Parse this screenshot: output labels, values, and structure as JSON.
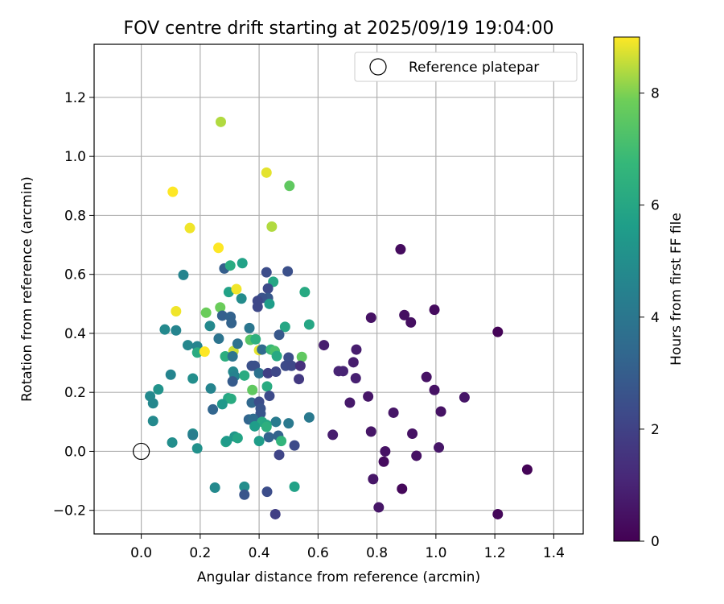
{
  "chart_data": {
    "type": "scatter",
    "title": "FOV centre drift starting at 2025/09/19 19:04:00",
    "xlabel": "Angular distance from reference (arcmin)",
    "ylabel": "Rotation from reference (arcmin)",
    "xlim": [
      -0.16,
      1.5
    ],
    "ylim": [
      -0.28,
      1.38
    ],
    "x_ticks": [
      0.0,
      0.2,
      0.4,
      0.6,
      0.8,
      1.0,
      1.2,
      1.4
    ],
    "x_tick_labels": [
      "0.0",
      "0.2",
      "0.4",
      "0.6",
      "0.8",
      "1.0",
      "1.2",
      "1.4"
    ],
    "y_ticks": [
      -0.2,
      0.0,
      0.2,
      0.4,
      0.6,
      0.8,
      1.0,
      1.2
    ],
    "y_tick_labels": [
      "−0.2",
      "0.0",
      "0.2",
      "0.4",
      "0.6",
      "0.8",
      "1.0",
      "1.2"
    ],
    "grid": true,
    "legend": {
      "position": "top-right",
      "label": "Reference platepar"
    },
    "reference_point": {
      "x": 0.0,
      "y": 0.0
    },
    "colorbar": {
      "label": "Hours from first FF file",
      "min": 0,
      "max": 9,
      "ticks": [
        0,
        2,
        4,
        6,
        8
      ],
      "tick_labels": [
        "0",
        "2",
        "4",
        "6",
        "8"
      ],
      "colormap": "viridis"
    },
    "points": [
      {
        "x": 0.88,
        "y": 0.685,
        "h": 0.3
      },
      {
        "x": 0.995,
        "y": 0.48,
        "h": 0.3
      },
      {
        "x": 0.893,
        "y": 0.462,
        "h": 0.4
      },
      {
        "x": 0.915,
        "y": 0.437,
        "h": 0.4
      },
      {
        "x": 1.21,
        "y": 0.405,
        "h": 0.1
      },
      {
        "x": 0.78,
        "y": 0.453,
        "h": 0.5
      },
      {
        "x": 0.62,
        "y": 0.36,
        "h": 0.8
      },
      {
        "x": 0.73,
        "y": 0.345,
        "h": 0.8
      },
      {
        "x": 0.72,
        "y": 0.302,
        "h": 0.8
      },
      {
        "x": 0.67,
        "y": 0.272,
        "h": 1.0
      },
      {
        "x": 0.685,
        "y": 0.272,
        "h": 1.0
      },
      {
        "x": 0.728,
        "y": 0.248,
        "h": 0.9
      },
      {
        "x": 0.968,
        "y": 0.252,
        "h": 0.5
      },
      {
        "x": 0.995,
        "y": 0.208,
        "h": 0.5
      },
      {
        "x": 1.097,
        "y": 0.183,
        "h": 0.6
      },
      {
        "x": 0.77,
        "y": 0.186,
        "h": 0.6
      },
      {
        "x": 0.708,
        "y": 0.165,
        "h": 0.7
      },
      {
        "x": 0.856,
        "y": 0.131,
        "h": 0.6
      },
      {
        "x": 1.017,
        "y": 0.135,
        "h": 0.5
      },
      {
        "x": 0.92,
        "y": 0.06,
        "h": 0.5
      },
      {
        "x": 0.65,
        "y": 0.056,
        "h": 0.8
      },
      {
        "x": 0.78,
        "y": 0.067,
        "h": 0.6
      },
      {
        "x": 0.828,
        "y": 0.0,
        "h": 0.5
      },
      {
        "x": 1.01,
        "y": 0.013,
        "h": 0.6
      },
      {
        "x": 0.823,
        "y": -0.035,
        "h": 0.3
      },
      {
        "x": 0.934,
        "y": -0.015,
        "h": 0.5
      },
      {
        "x": 0.787,
        "y": -0.094,
        "h": 0.6
      },
      {
        "x": 0.885,
        "y": -0.127,
        "h": 0.2
      },
      {
        "x": 0.806,
        "y": -0.19,
        "h": 0.6
      },
      {
        "x": 1.21,
        "y": -0.213,
        "h": 0.2
      },
      {
        "x": 1.31,
        "y": -0.062,
        "h": 0.1
      },
      {
        "x": 0.27,
        "y": 1.117,
        "h": 8.4
      },
      {
        "x": 0.425,
        "y": 0.945,
        "h": 8.8
      },
      {
        "x": 0.503,
        "y": 0.9,
        "h": 7.6
      },
      {
        "x": 0.107,
        "y": 0.88,
        "h": 9.0
      },
      {
        "x": 0.165,
        "y": 0.757,
        "h": 8.9
      },
      {
        "x": 0.443,
        "y": 0.762,
        "h": 8.4
      },
      {
        "x": 0.262,
        "y": 0.69,
        "h": 9.0
      },
      {
        "x": 0.282,
        "y": 0.62,
        "h": 3.0
      },
      {
        "x": 0.302,
        "y": 0.63,
        "h": 6.2
      },
      {
        "x": 0.343,
        "y": 0.638,
        "h": 5.8
      },
      {
        "x": 0.425,
        "y": 0.607,
        "h": 2.4
      },
      {
        "x": 0.497,
        "y": 0.61,
        "h": 2.5
      },
      {
        "x": 0.143,
        "y": 0.598,
        "h": 4.6
      },
      {
        "x": 0.448,
        "y": 0.575,
        "h": 6.0
      },
      {
        "x": 0.43,
        "y": 0.552,
        "h": 2.3
      },
      {
        "x": 0.297,
        "y": 0.54,
        "h": 5.8
      },
      {
        "x": 0.323,
        "y": 0.55,
        "h": 8.9
      },
      {
        "x": 0.555,
        "y": 0.54,
        "h": 6.1
      },
      {
        "x": 0.43,
        "y": 0.52,
        "h": 2.8
      },
      {
        "x": 0.41,
        "y": 0.52,
        "h": 2.6
      },
      {
        "x": 0.395,
        "y": 0.51,
        "h": 2.2
      },
      {
        "x": 0.34,
        "y": 0.518,
        "h": 4.9
      },
      {
        "x": 0.395,
        "y": 0.49,
        "h": 2.2
      },
      {
        "x": 0.435,
        "y": 0.5,
        "h": 5.6
      },
      {
        "x": 0.118,
        "y": 0.475,
        "h": 8.9
      },
      {
        "x": 0.22,
        "y": 0.47,
        "h": 7.8
      },
      {
        "x": 0.268,
        "y": 0.488,
        "h": 7.8
      },
      {
        "x": 0.275,
        "y": 0.46,
        "h": 3.1
      },
      {
        "x": 0.303,
        "y": 0.456,
        "h": 3.2
      },
      {
        "x": 0.306,
        "y": 0.435,
        "h": 3.2
      },
      {
        "x": 0.233,
        "y": 0.425,
        "h": 4.8
      },
      {
        "x": 0.08,
        "y": 0.413,
        "h": 4.8
      },
      {
        "x": 0.118,
        "y": 0.41,
        "h": 4.6
      },
      {
        "x": 0.367,
        "y": 0.418,
        "h": 4.0
      },
      {
        "x": 0.488,
        "y": 0.422,
        "h": 6.0
      },
      {
        "x": 0.57,
        "y": 0.43,
        "h": 6.0
      },
      {
        "x": 0.263,
        "y": 0.382,
        "h": 3.9
      },
      {
        "x": 0.37,
        "y": 0.378,
        "h": 7.4
      },
      {
        "x": 0.388,
        "y": 0.38,
        "h": 6.4
      },
      {
        "x": 0.468,
        "y": 0.395,
        "h": 2.8
      },
      {
        "x": 0.158,
        "y": 0.36,
        "h": 4.7
      },
      {
        "x": 0.19,
        "y": 0.356,
        "h": 4.6
      },
      {
        "x": 0.19,
        "y": 0.335,
        "h": 6.2
      },
      {
        "x": 0.215,
        "y": 0.338,
        "h": 9.0
      },
      {
        "x": 0.313,
        "y": 0.34,
        "h": 8.6
      },
      {
        "x": 0.327,
        "y": 0.365,
        "h": 3.8
      },
      {
        "x": 0.4,
        "y": 0.343,
        "h": 8.8
      },
      {
        "x": 0.41,
        "y": 0.345,
        "h": 3.5
      },
      {
        "x": 0.44,
        "y": 0.345,
        "h": 6.8
      },
      {
        "x": 0.453,
        "y": 0.34,
        "h": 7.2
      },
      {
        "x": 0.46,
        "y": 0.323,
        "h": 6.1
      },
      {
        "x": 0.545,
        "y": 0.32,
        "h": 7.6
      },
      {
        "x": 0.5,
        "y": 0.318,
        "h": 2.4
      },
      {
        "x": 0.285,
        "y": 0.322,
        "h": 6.3
      },
      {
        "x": 0.31,
        "y": 0.322,
        "h": 3.9
      },
      {
        "x": 0.375,
        "y": 0.29,
        "h": 2.5
      },
      {
        "x": 0.385,
        "y": 0.29,
        "h": 2.5
      },
      {
        "x": 0.49,
        "y": 0.29,
        "h": 2.3
      },
      {
        "x": 0.51,
        "y": 0.29,
        "h": 2.2
      },
      {
        "x": 0.54,
        "y": 0.29,
        "h": 1.4
      },
      {
        "x": 0.1,
        "y": 0.26,
        "h": 4.6
      },
      {
        "x": 0.312,
        "y": 0.27,
        "h": 4.7
      },
      {
        "x": 0.317,
        "y": 0.255,
        "h": 4.5
      },
      {
        "x": 0.35,
        "y": 0.257,
        "h": 6.2
      },
      {
        "x": 0.4,
        "y": 0.265,
        "h": 3.8
      },
      {
        "x": 0.43,
        "y": 0.265,
        "h": 1.9
      },
      {
        "x": 0.457,
        "y": 0.27,
        "h": 2.2
      },
      {
        "x": 0.535,
        "y": 0.245,
        "h": 1.7
      },
      {
        "x": 0.175,
        "y": 0.247,
        "h": 5.0
      },
      {
        "x": 0.31,
        "y": 0.237,
        "h": 2.9
      },
      {
        "x": 0.058,
        "y": 0.21,
        "h": 5.2
      },
      {
        "x": 0.236,
        "y": 0.213,
        "h": 4.6
      },
      {
        "x": 0.377,
        "y": 0.208,
        "h": 7.6
      },
      {
        "x": 0.427,
        "y": 0.22,
        "h": 6.2
      },
      {
        "x": 0.03,
        "y": 0.187,
        "h": 4.8
      },
      {
        "x": 0.435,
        "y": 0.188,
        "h": 2.3
      },
      {
        "x": 0.295,
        "y": 0.18,
        "h": 6.0
      },
      {
        "x": 0.305,
        "y": 0.178,
        "h": 6.2
      },
      {
        "x": 0.375,
        "y": 0.165,
        "h": 3.4
      },
      {
        "x": 0.4,
        "y": 0.168,
        "h": 2.4
      },
      {
        "x": 0.04,
        "y": 0.163,
        "h": 4.7
      },
      {
        "x": 0.275,
        "y": 0.16,
        "h": 5.4
      },
      {
        "x": 0.243,
        "y": 0.142,
        "h": 3.3
      },
      {
        "x": 0.405,
        "y": 0.145,
        "h": 2.6
      },
      {
        "x": 0.405,
        "y": 0.128,
        "h": 2.7
      },
      {
        "x": 0.57,
        "y": 0.115,
        "h": 4.1
      },
      {
        "x": 0.365,
        "y": 0.108,
        "h": 3.3
      },
      {
        "x": 0.38,
        "y": 0.11,
        "h": 3.6
      },
      {
        "x": 0.04,
        "y": 0.103,
        "h": 4.8
      },
      {
        "x": 0.41,
        "y": 0.1,
        "h": 6.1
      },
      {
        "x": 0.457,
        "y": 0.1,
        "h": 4.2
      },
      {
        "x": 0.5,
        "y": 0.095,
        "h": 4.1
      },
      {
        "x": 0.425,
        "y": 0.09,
        "h": 6.0
      },
      {
        "x": 0.385,
        "y": 0.085,
        "h": 5.6
      },
      {
        "x": 0.425,
        "y": 0.083,
        "h": 6.4
      },
      {
        "x": 0.175,
        "y": 0.06,
        "h": 5.0
      },
      {
        "x": 0.175,
        "y": 0.055,
        "h": 4.3
      },
      {
        "x": 0.317,
        "y": 0.05,
        "h": 5.3
      },
      {
        "x": 0.327,
        "y": 0.045,
        "h": 5.9
      },
      {
        "x": 0.433,
        "y": 0.048,
        "h": 3.2
      },
      {
        "x": 0.465,
        "y": 0.053,
        "h": 3.2
      },
      {
        "x": 0.105,
        "y": 0.03,
        "h": 5.0
      },
      {
        "x": 0.287,
        "y": 0.032,
        "h": 6.0
      },
      {
        "x": 0.29,
        "y": 0.035,
        "h": 5.5
      },
      {
        "x": 0.4,
        "y": 0.035,
        "h": 5.6
      },
      {
        "x": 0.475,
        "y": 0.035,
        "h": 6.6
      },
      {
        "x": 0.52,
        "y": 0.02,
        "h": 2.3
      },
      {
        "x": 0.19,
        "y": 0.01,
        "h": 5.1
      },
      {
        "x": 0.468,
        "y": -0.012,
        "h": 2.1
      },
      {
        "x": 0.25,
        "y": -0.123,
        "h": 4.8
      },
      {
        "x": 0.35,
        "y": -0.12,
        "h": 5.0
      },
      {
        "x": 0.52,
        "y": -0.12,
        "h": 5.8
      },
      {
        "x": 0.427,
        "y": -0.137,
        "h": 2.4
      },
      {
        "x": 0.35,
        "y": -0.147,
        "h": 2.7
      },
      {
        "x": 0.455,
        "y": -0.213,
        "h": 1.9
      }
    ]
  }
}
